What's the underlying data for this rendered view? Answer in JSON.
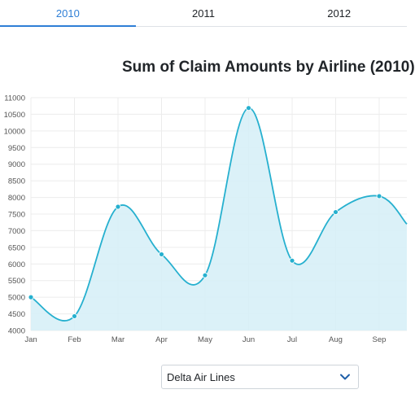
{
  "tabs": [
    {
      "label": "2010",
      "active": true
    },
    {
      "label": "2011",
      "active": false
    },
    {
      "label": "2012",
      "active": false
    }
  ],
  "dropdown": {
    "selected": "Delta Air Lines",
    "icon": "chevron-down-icon"
  },
  "colors": {
    "accent": "#2f7fd6",
    "line": "#26b0cf",
    "fill": "#d7f0f7"
  },
  "chart_data": {
    "type": "area",
    "title": "Sum of Claim Amounts by Airline (2010)",
    "categories": [
      "Jan",
      "Feb",
      "Mar",
      "Apr",
      "May",
      "Jun",
      "Jul",
      "Aug",
      "Sep"
    ],
    "values": [
      5000,
      4430,
      7720,
      6290,
      5660,
      10690,
      6100,
      7560,
      8040
    ],
    "y_ticks": [
      4000,
      4500,
      5000,
      5500,
      6000,
      6500,
      7000,
      7500,
      8000,
      8500,
      9000,
      9500,
      10000,
      10500,
      11000
    ],
    "ylim": [
      4000,
      11000
    ],
    "grid": true,
    "legend": "none"
  }
}
